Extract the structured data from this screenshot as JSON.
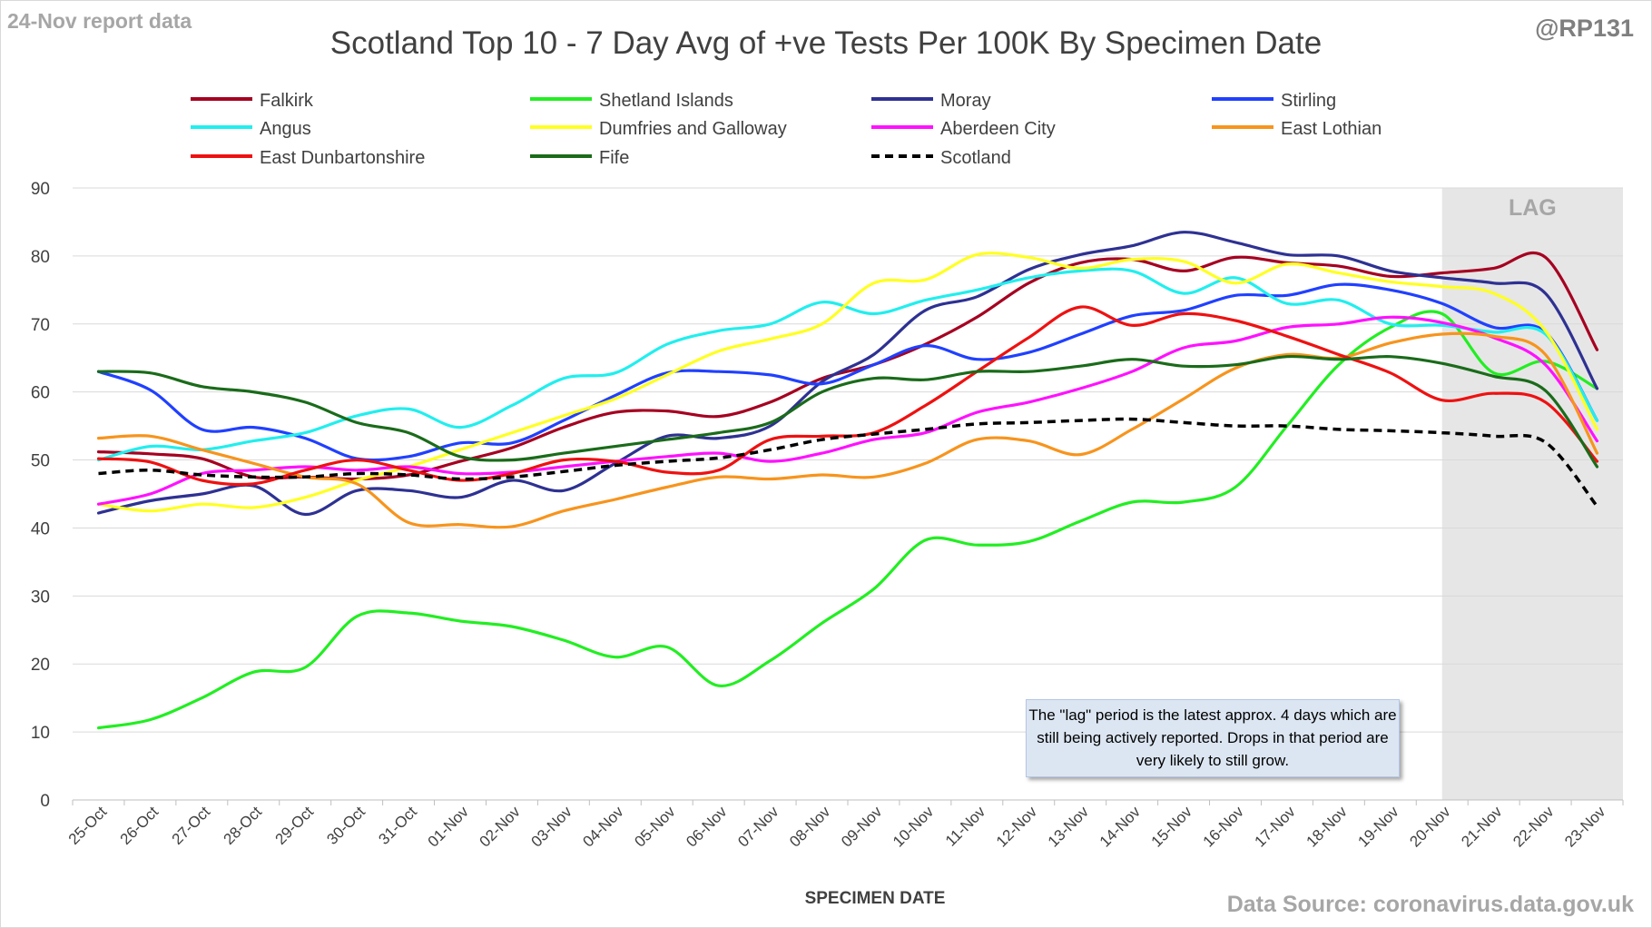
{
  "report_date": "24-Nov report data",
  "handle": "@RP131",
  "source_text": "Data Source: coronavirus.data.gov.uk",
  "note_text": "The \"lag\" period is the latest approx. 4 days which are still being actively reported.  Drops in that period are very likely to still grow.",
  "chart_data": {
    "type": "line",
    "title": "Scotland Top 10 - 7 Day Avg of +ve Tests Per 100K By Specimen Date",
    "xlabel": "SPECIMEN DATE",
    "ylabel": "",
    "ylim": [
      0,
      90
    ],
    "yticks": [
      0,
      10,
      20,
      30,
      40,
      50,
      60,
      70,
      80,
      90
    ],
    "grid": true,
    "legend_position": "top",
    "lag_label": "LAG",
    "lag_range": [
      "20-Nov",
      "23-Nov"
    ],
    "categories": [
      "25-Oct",
      "26-Oct",
      "27-Oct",
      "28-Oct",
      "29-Oct",
      "30-Oct",
      "31-Oct",
      "01-Nov",
      "02-Nov",
      "03-Nov",
      "04-Nov",
      "05-Nov",
      "06-Nov",
      "07-Nov",
      "08-Nov",
      "09-Nov",
      "10-Nov",
      "11-Nov",
      "12-Nov",
      "13-Nov",
      "14-Nov",
      "15-Nov",
      "16-Nov",
      "17-Nov",
      "18-Nov",
      "19-Nov",
      "20-Nov",
      "21-Nov",
      "22-Nov",
      "23-Nov"
    ],
    "series": [
      {
        "name": "Falkirk",
        "color": "#a50021",
        "dashed": false,
        "values": [
          51.2,
          50.9,
          50.2,
          47.5,
          47.5,
          47.2,
          47.8,
          49.8,
          51.8,
          54.8,
          57,
          57.2,
          56.4,
          58.5,
          62,
          64,
          67,
          71,
          76,
          79,
          79.5,
          77.8,
          79.8,
          79,
          78.5,
          77,
          77.5,
          78.2,
          79.8,
          66.2
        ]
      },
      {
        "name": "Shetland Islands",
        "color": "#22ee22",
        "dashed": false,
        "values": [
          10.6,
          11.8,
          15,
          18.8,
          19.5,
          27,
          27.5,
          26.3,
          25.5,
          23.5,
          21,
          22.5,
          16.8,
          20.5,
          26,
          31,
          38.2,
          37.5,
          38,
          41,
          43.8,
          43.8,
          46,
          55,
          64,
          69.5,
          71.5,
          62.8,
          64.5,
          60.5
        ]
      },
      {
        "name": "Moray",
        "color": "#2e3192",
        "dashed": false,
        "values": [
          42.2,
          44,
          45,
          46.2,
          42,
          45.5,
          45.5,
          44.5,
          47,
          45.5,
          49.5,
          53.5,
          53.2,
          55,
          61.5,
          65.5,
          72,
          74,
          78,
          80.2,
          81.5,
          83.5,
          82,
          80.2,
          80,
          77.8,
          76.8,
          76,
          74.5,
          60.5
        ]
      },
      {
        "name": "Stirling",
        "color": "#2040ff",
        "dashed": false,
        "values": [
          63,
          60.3,
          54.5,
          54.8,
          53.2,
          50.2,
          50.5,
          52.5,
          52.5,
          55.8,
          59.5,
          62.8,
          63,
          62.5,
          61.2,
          64,
          66.8,
          64.8,
          65.8,
          68.5,
          71.2,
          72,
          74.2,
          74.2,
          75.8,
          75,
          73,
          69.5,
          68.8,
          55.8
        ]
      },
      {
        "name": "Angus",
        "color": "#22eeee",
        "dashed": false,
        "values": [
          50,
          52,
          51.5,
          52.8,
          54,
          56.5,
          57.5,
          54.8,
          58,
          62,
          62.8,
          67,
          69,
          70,
          73.2,
          71.5,
          73.5,
          75,
          76.8,
          77.8,
          77.8,
          74.5,
          76.8,
          73,
          73.5,
          70,
          69.8,
          68.8,
          68.5,
          55.8
        ]
      },
      {
        "name": "Dumfries and Galloway",
        "color": "#ffff22",
        "dashed": false,
        "values": [
          43.5,
          42.5,
          43.5,
          43,
          44.5,
          47,
          49,
          51.5,
          54,
          56.5,
          59,
          62.5,
          66,
          67.8,
          70,
          76,
          76.5,
          80.2,
          79.8,
          78.2,
          79.5,
          79.2,
          76,
          78.8,
          77.5,
          76.2,
          75.5,
          74.5,
          69,
          54.5
        ]
      },
      {
        "name": "Aberdeen City",
        "color": "#ff11ff",
        "dashed": false,
        "values": [
          43.5,
          45,
          48,
          48.5,
          49,
          48.5,
          49,
          48,
          48.2,
          49,
          49.8,
          50.5,
          51,
          49.8,
          51,
          53,
          54,
          57,
          58.5,
          60.5,
          63,
          66.5,
          67.5,
          69.5,
          70,
          71,
          70.2,
          68,
          64,
          52.8
        ]
      },
      {
        "name": "East Lothian",
        "color": "#f7941d",
        "dashed": false,
        "values": [
          53.2,
          53.5,
          51.5,
          49.5,
          47.5,
          46.5,
          40.8,
          40.5,
          40.2,
          42.5,
          44.2,
          46,
          47.5,
          47.2,
          47.8,
          47.5,
          49.5,
          53,
          52.8,
          50.8,
          54.5,
          59,
          63.5,
          65.5,
          65,
          67.2,
          68.5,
          68.2,
          65.5,
          51
        ]
      },
      {
        "name": "East Dunbartonshire",
        "color": "#ee1111",
        "dashed": false,
        "values": [
          50.2,
          49.7,
          47,
          46.5,
          48.5,
          50,
          48.5,
          47,
          48,
          50,
          49.8,
          48.2,
          48.5,
          53,
          53.5,
          54,
          58,
          63,
          68,
          72.5,
          69.8,
          71.5,
          70.5,
          68.2,
          65.5,
          62.8,
          58.8,
          59.8,
          58.5,
          49.8
        ]
      },
      {
        "name": "Fife",
        "color": "#1a6b1a",
        "dashed": false,
        "values": [
          63,
          62.8,
          60.8,
          60,
          58.5,
          55.5,
          54,
          50.5,
          50,
          51,
          52,
          53,
          54,
          55.5,
          60,
          62,
          61.8,
          63,
          63,
          63.8,
          64.8,
          63.8,
          64,
          65.2,
          64.8,
          65.2,
          64.2,
          62.3,
          60.2,
          49
        ]
      },
      {
        "name": "Scotland",
        "color": "#000000",
        "dashed": true,
        "values": [
          48,
          48.5,
          47.8,
          47.5,
          47.5,
          48,
          47.8,
          47.2,
          47.5,
          48.3,
          49.2,
          49.8,
          50.3,
          51.5,
          53,
          53.8,
          54.5,
          55.3,
          55.5,
          55.8,
          56,
          55.5,
          55,
          55,
          54.5,
          54.3,
          54,
          53.5,
          52.6,
          43.2
        ]
      }
    ]
  }
}
